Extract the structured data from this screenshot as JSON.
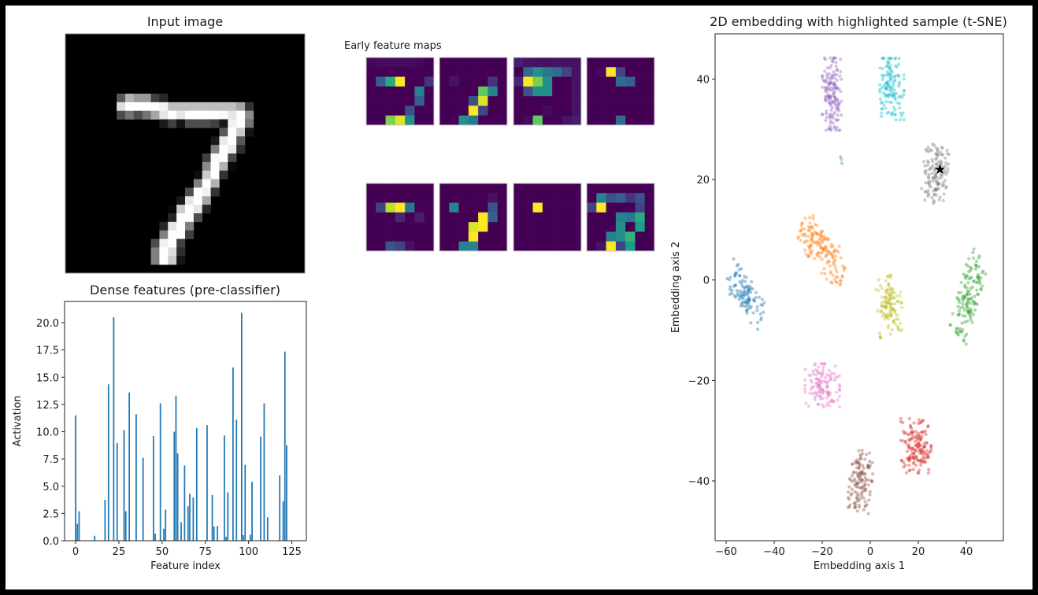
{
  "input_panel": {
    "title": "Input image",
    "image": {
      "size": 28,
      "colormap": "gray",
      "rows": [
        {
          "row": 7,
          "start": 6,
          "values": [
            0.35,
            0.7,
            0.6,
            0.6,
            0.25,
            0.15
          ]
        },
        {
          "row": 8,
          "start": 6,
          "values": [
            0.87,
            1,
            1,
            1,
            1,
            0.95,
            0.75,
            0.75,
            0.75,
            0.75,
            0.75,
            0.75,
            0.75,
            0.75,
            0.65,
            0.2
          ]
        },
        {
          "row": 9,
          "start": 6,
          "values": [
            0.3,
            0.45,
            0.3,
            0.45,
            0.65,
            0.9,
            1,
            0.9,
            1,
            1,
            1,
            1,
            0.98,
            0.9,
            1,
            0.55
          ]
        },
        {
          "row": 10,
          "start": 11,
          "values": [
            0.1,
            0.25,
            0.08,
            0.3,
            0.3,
            0.3,
            0.25,
            0.1,
            0.95,
            1,
            0.45
          ]
        },
        {
          "row": 11,
          "start": 18,
          "values": [
            0.35,
            1,
            0.8,
            0.08
          ]
        },
        {
          "row": 12,
          "start": 17,
          "values": [
            0.1,
            0.92,
            1,
            0.35
          ]
        },
        {
          "row": 13,
          "start": 17,
          "values": [
            0.5,
            1,
            0.92,
            0.18
          ]
        },
        {
          "row": 14,
          "start": 16,
          "values": [
            0.25,
            0.98,
            1,
            0.28
          ]
        },
        {
          "row": 15,
          "start": 16,
          "values": [
            0.55,
            1,
            0.7,
            0.03
          ]
        },
        {
          "row": 16,
          "start": 15,
          "values": [
            0.05,
            0.8,
            1,
            0.2
          ]
        },
        {
          "row": 17,
          "start": 15,
          "values": [
            0.5,
            1,
            0.7
          ]
        },
        {
          "row": 18,
          "start": 14,
          "values": [
            0.3,
            1,
            0.95,
            0.2
          ]
        },
        {
          "row": 19,
          "start": 13,
          "values": [
            0.1,
            0.9,
            1,
            0.65
          ]
        },
        {
          "row": 20,
          "start": 12,
          "values": [
            0.03,
            0.8,
            1,
            0.9,
            0.15
          ]
        },
        {
          "row": 21,
          "start": 12,
          "values": [
            0.15,
            1,
            1,
            0.3
          ]
        },
        {
          "row": 22,
          "start": 11,
          "values": [
            0.15,
            0.9,
            1,
            0.5
          ]
        },
        {
          "row": 23,
          "start": 11,
          "values": [
            0.5,
            1,
            1,
            0.25
          ]
        },
        {
          "row": 24,
          "start": 10,
          "values": [
            0.3,
            0.95,
            1,
            0.25
          ]
        },
        {
          "row": 25,
          "start": 10,
          "values": [
            0.5,
            1,
            0.87,
            0.18
          ]
        },
        {
          "row": 26,
          "start": 10,
          "values": [
            0.5,
            1,
            0.8,
            0.08
          ]
        }
      ]
    }
  },
  "feature_maps": {
    "title": "Early feature maps",
    "colormap": "viridis",
    "maps": [
      [
        [
          0.02,
          0.03,
          0.03,
          0.03,
          0.03,
          0.02,
          0
        ],
        [
          0,
          0,
          0,
          0,
          0,
          0,
          0
        ],
        [
          0,
          0.3,
          0.6,
          1,
          0,
          0,
          0.15
        ],
        [
          0,
          0,
          0,
          0,
          0,
          0.45,
          0
        ],
        [
          0,
          0,
          0,
          0,
          0,
          0.3,
          0
        ],
        [
          0,
          0,
          0,
          0,
          0.25,
          0,
          0
        ],
        [
          0,
          0,
          0.8,
          0.95,
          0.5,
          0,
          0
        ]
      ],
      [
        [
          0,
          0,
          0,
          0,
          0,
          0,
          0
        ],
        [
          0,
          0,
          0,
          0,
          0,
          0,
          0
        ],
        [
          0,
          0.05,
          0,
          0,
          0,
          0.15,
          0
        ],
        [
          0,
          0,
          0,
          0,
          0.75,
          0.45,
          0
        ],
        [
          0,
          0,
          0,
          0.25,
          0.95,
          0,
          0
        ],
        [
          0,
          0,
          0,
          1,
          0.2,
          0,
          0
        ],
        [
          0,
          0,
          0.5,
          0.4,
          0,
          0,
          0
        ]
      ],
      [
        [
          0.08,
          0.05,
          0.05,
          0.05,
          0.05,
          0.05,
          0.05
        ],
        [
          0,
          0.35,
          0.5,
          0.4,
          0.35,
          0.2,
          0.05
        ],
        [
          0.1,
          1,
          0.8,
          0.5,
          0,
          0,
          0.05
        ],
        [
          0,
          0.25,
          0.5,
          0.5,
          0,
          0,
          0.05
        ],
        [
          0,
          0,
          0,
          0,
          0,
          0,
          0.05
        ],
        [
          0,
          0,
          0,
          0.03,
          0,
          0,
          0.05
        ],
        [
          0,
          0.03,
          0.75,
          0,
          0,
          0.05,
          0.08
        ]
      ],
      [
        [
          0,
          0,
          0,
          0,
          0,
          0,
          0
        ],
        [
          0,
          0.03,
          1,
          0.2,
          0,
          0,
          0
        ],
        [
          0,
          0,
          0,
          0.35,
          0.3,
          0,
          0
        ],
        [
          0,
          0,
          0,
          0,
          0,
          0,
          0
        ],
        [
          0,
          0,
          0,
          0,
          0,
          0,
          0
        ],
        [
          0,
          0,
          0,
          0,
          0,
          0,
          0
        ],
        [
          0,
          0,
          0,
          0.35,
          0,
          0,
          0
        ]
      ],
      [
        [
          0,
          0,
          0,
          0,
          0,
          0,
          0
        ],
        [
          0,
          0,
          0,
          0,
          0,
          0,
          0
        ],
        [
          0,
          0.2,
          0.9,
          1,
          0.4,
          0,
          0
        ],
        [
          0,
          0,
          0,
          0.1,
          0,
          0.08,
          0
        ],
        [
          0,
          0,
          0,
          0,
          0,
          0,
          0
        ],
        [
          0,
          0,
          0,
          0,
          0,
          0,
          0
        ],
        [
          0,
          0,
          0.25,
          0.2,
          0.05,
          0,
          0
        ]
      ],
      [
        [
          0,
          0,
          0,
          0,
          0,
          0,
          0
        ],
        [
          0,
          0,
          0,
          0,
          0,
          0.05,
          0
        ],
        [
          0,
          0.45,
          0,
          0,
          0,
          0.25,
          0
        ],
        [
          0,
          0,
          0,
          0,
          1,
          0.3,
          0
        ],
        [
          0,
          0,
          0,
          0.95,
          1,
          0,
          0
        ],
        [
          0,
          0,
          0,
          1,
          0,
          0,
          0
        ],
        [
          0,
          0,
          0.45,
          0.45,
          0,
          0,
          0
        ]
      ],
      [
        [
          0,
          0,
          0,
          0,
          0,
          0,
          0
        ],
        [
          0,
          0,
          0,
          0,
          0,
          0,
          0
        ],
        [
          0,
          0,
          1,
          0,
          0,
          0,
          0
        ],
        [
          0,
          0,
          0,
          0,
          0,
          0,
          0
        ],
        [
          0,
          0,
          0,
          0,
          0,
          0,
          0
        ],
        [
          0,
          0,
          0,
          0,
          0,
          0,
          0
        ],
        [
          0,
          0,
          0,
          0,
          0,
          0,
          0
        ]
      ],
      [
        [
          0,
          0,
          0,
          0,
          0,
          0,
          0
        ],
        [
          0,
          0.45,
          0.25,
          0.3,
          0.15,
          0.25,
          0
        ],
        [
          0.2,
          1,
          0,
          0,
          0,
          0.2,
          0
        ],
        [
          0,
          0,
          0,
          0.45,
          0.4,
          0.6,
          0
        ],
        [
          0,
          0,
          0,
          0.5,
          0,
          0.55,
          0
        ],
        [
          0,
          0,
          0.45,
          0.5,
          0.65,
          0,
          0
        ],
        [
          0,
          0.05,
          1,
          0.2,
          0.55,
          0,
          0
        ]
      ]
    ]
  },
  "chart_data": [
    {
      "type": "bar",
      "title": "Dense features (pre-classifier)",
      "xlabel": "Feature index",
      "ylabel": "Activation",
      "xlim": [
        -6.4,
        133.4
      ],
      "ylim": [
        0,
        21.95
      ],
      "xticks": [
        "0",
        "25",
        "50",
        "75",
        "100",
        "125"
      ],
      "yticks": [
        "0.0",
        "2.5",
        "5.0",
        "7.5",
        "10.0",
        "12.5",
        "15.0",
        "17.5",
        "20.0"
      ],
      "color": "#1f77b4",
      "bars": [
        [
          0,
          11.5
        ],
        [
          1,
          1.55
        ],
        [
          2,
          2.7
        ],
        [
          11,
          0.45
        ],
        [
          17,
          3.75
        ],
        [
          19,
          14.35
        ],
        [
          22,
          20.5
        ],
        [
          24,
          8.95
        ],
        [
          28,
          10.15
        ],
        [
          29,
          2.7
        ],
        [
          31,
          13.6
        ],
        [
          35,
          11.6
        ],
        [
          39,
          7.6
        ],
        [
          45,
          9.6
        ],
        [
          46,
          0.65
        ],
        [
          49,
          12.6
        ],
        [
          51,
          1.1
        ],
        [
          52,
          2.85
        ],
        [
          57,
          10.0
        ],
        [
          58,
          13.3
        ],
        [
          59,
          8.0
        ],
        [
          61,
          1.7
        ],
        [
          63,
          6.9
        ],
        [
          65,
          3.15
        ],
        [
          66,
          4.3
        ],
        [
          68,
          3.95
        ],
        [
          70,
          10.35
        ],
        [
          76,
          10.6
        ],
        [
          79,
          4.2
        ],
        [
          80,
          1.3
        ],
        [
          82,
          1.35
        ],
        [
          86,
          9.65
        ],
        [
          87,
          0.35
        ],
        [
          88,
          4.45
        ],
        [
          91,
          15.9
        ],
        [
          93,
          11.1
        ],
        [
          96,
          20.9
        ],
        [
          97,
          0.5
        ],
        [
          98,
          6.95
        ],
        [
          101,
          0.55
        ],
        [
          102,
          5.4
        ],
        [
          107,
          9.55
        ],
        [
          109,
          12.6
        ],
        [
          111,
          2.15
        ],
        [
          118,
          6.0
        ],
        [
          120,
          3.6
        ],
        [
          121,
          17.35
        ],
        [
          122,
          8.75
        ]
      ]
    },
    {
      "type": "scatter",
      "title": "2D embedding with highlighted sample (t-SNE)",
      "xlabel": "Embedding axis 1",
      "ylabel": "Embedding axis 2",
      "xlim": [
        -64.6,
        55.4
      ],
      "ylim": [
        -51.9,
        49
      ],
      "xticks": [
        "−60",
        "−40",
        "−20",
        "0",
        "20",
        "40"
      ],
      "yticks": [
        "−40",
        "−20",
        "0",
        "20",
        "40"
      ],
      "clusters": [
        {
          "color": "#9467bd",
          "center": [
            -16,
            37
          ],
          "spread": [
            2.2,
            4.0
          ],
          "angle": 0,
          "count": 150
        },
        {
          "color": "#17becf",
          "center": [
            9,
            38
          ],
          "spread": [
            2.8,
            3.4
          ],
          "angle": 0,
          "count": 130
        },
        {
          "color": "#7f7f7f",
          "center": [
            27,
            21
          ],
          "spread": [
            2.8,
            3.2
          ],
          "angle": -10,
          "count": 130
        },
        {
          "color": "#ff7f0e",
          "center": [
            -20,
            6
          ],
          "spread": [
            5.5,
            2.3
          ],
          "angle": -30,
          "count": 160
        },
        {
          "color": "#1f77b4",
          "center": [
            -52,
            -3
          ],
          "spread": [
            4.5,
            2.0
          ],
          "angle": -35,
          "count": 110
        },
        {
          "color": "#bcbd22",
          "center": [
            8,
            -5
          ],
          "spread": [
            2.8,
            3.2
          ],
          "angle": 10,
          "count": 120
        },
        {
          "color": "#2ca02c",
          "center": [
            41,
            -3
          ],
          "spread": [
            5.0,
            2.2
          ],
          "angle": 60,
          "count": 140
        },
        {
          "color": "#e377c2",
          "center": [
            -20,
            -21
          ],
          "spread": [
            4.0,
            2.4
          ],
          "angle": 0,
          "count": 120
        },
        {
          "color": "#d62728",
          "center": [
            19,
            -33
          ],
          "spread": [
            3.5,
            3.0
          ],
          "angle": 0,
          "count": 150
        },
        {
          "color": "#8c564b",
          "center": [
            -4,
            -40
          ],
          "spread": [
            2.6,
            3.4
          ],
          "angle": -10,
          "count": 130
        },
        {
          "color": "#2ca02c",
          "center": [
            -12,
            24
          ],
          "spread": [
            0.3,
            0.6
          ],
          "angle": 0,
          "count": 3
        }
      ],
      "highlighted_sample": {
        "x": 29,
        "y": 22,
        "marker": "star",
        "color": "#000000"
      }
    }
  ]
}
